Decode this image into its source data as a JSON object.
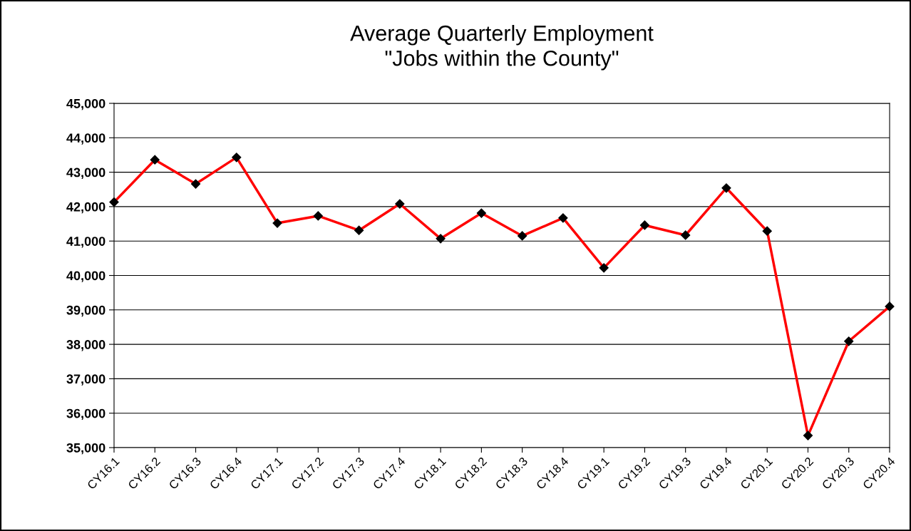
{
  "chart_data": {
    "type": "line",
    "title": "Average Quarterly Employment",
    "subtitle": "\"Jobs within the County\"",
    "categories": [
      "CY16.1",
      "CY16.2",
      "CY16.3",
      "CY16.4",
      "CY17.1",
      "CY17.2",
      "CY17.3",
      "CY17.4",
      "CY18.1",
      "CY18.2",
      "CY18.3",
      "CY18.4",
      "CY19.1",
      "CY19.2",
      "CY19.3",
      "CY19.4",
      "CY20.1",
      "CY20.2",
      "CY20.3",
      "CY20.4"
    ],
    "series": [
      {
        "color": "#ff0000",
        "values": [
          42130,
          43360,
          42660,
          43430,
          41520,
          41730,
          41310,
          42080,
          41070,
          41810,
          41150,
          41670,
          40220,
          41460,
          41170,
          42540,
          41290,
          35350,
          38090,
          39100
        ]
      }
    ],
    "ylim": [
      35000,
      45000
    ],
    "yticks": [
      {
        "value": 35000,
        "label": "35,000"
      },
      {
        "value": 36000,
        "label": "36,000"
      },
      {
        "value": 37000,
        "label": "37,000"
      },
      {
        "value": 38000,
        "label": "38,000"
      },
      {
        "value": 39000,
        "label": "39,000"
      },
      {
        "value": 40000,
        "label": "40,000"
      },
      {
        "value": 41000,
        "label": "41,000"
      },
      {
        "value": 42000,
        "label": "42,000"
      },
      {
        "value": 43000,
        "label": "43,000"
      },
      {
        "value": 44000,
        "label": "44,000"
      },
      {
        "value": 45000,
        "label": "45,000"
      }
    ],
    "grid": "y",
    "marker": "diamond",
    "line_style": "solid",
    "legend": false
  }
}
